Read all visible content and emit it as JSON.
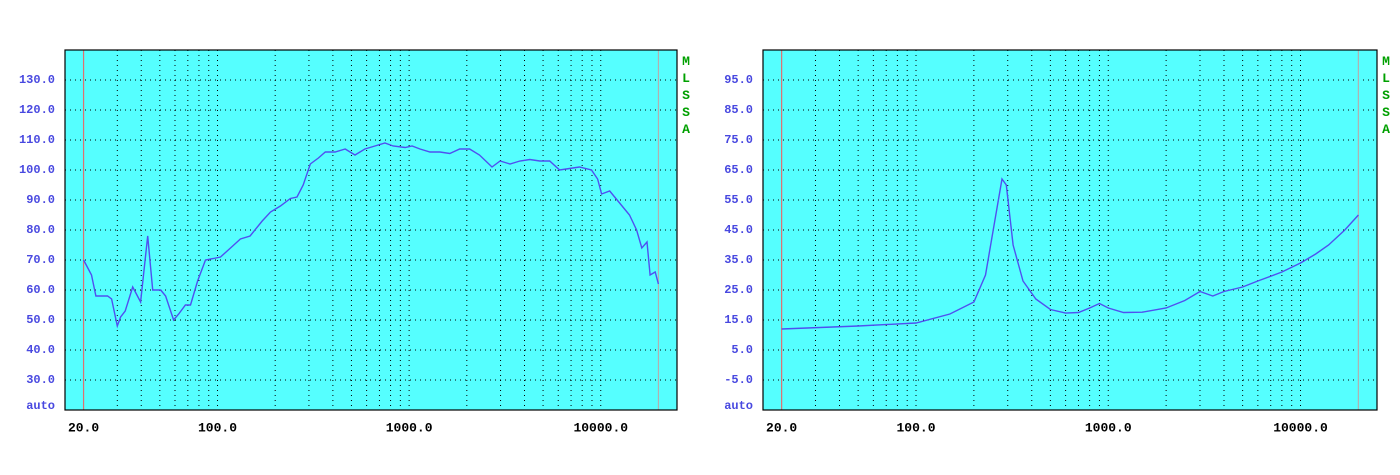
{
  "chart_data": [
    {
      "type": "line",
      "log_x": true,
      "grid": true,
      "side_label": "MLSSA",
      "auto_label": "auto",
      "plot_color": "#55ffff",
      "xlim": [
        16,
        25000
      ],
      "ylim": [
        20,
        140
      ],
      "xticks": [
        {
          "value": 20,
          "label": "20.0"
        },
        {
          "value": 100,
          "label": "100.0"
        },
        {
          "value": 1000,
          "label": "1000.0"
        },
        {
          "value": 10000,
          "label": "10000.0"
        }
      ],
      "xminor": [
        30,
        40,
        50,
        60,
        70,
        80,
        90,
        100,
        200,
        300,
        400,
        500,
        600,
        700,
        800,
        900,
        1000,
        2000,
        3000,
        4000,
        5000,
        6000,
        7000,
        8000,
        9000,
        10000
      ],
      "range_markers": [
        {
          "value": 20,
          "color": "#e07070"
        },
        {
          "value": 20000,
          "color": "#b0b0b0"
        }
      ],
      "yticks": [
        {
          "value": 30,
          "label": "30.0"
        },
        {
          "value": 40,
          "label": "40.0"
        },
        {
          "value": 50,
          "label": "50.0"
        },
        {
          "value": 60,
          "label": "60.0"
        },
        {
          "value": 70,
          "label": "70.0"
        },
        {
          "value": 80,
          "label": "80.0"
        },
        {
          "value": 90,
          "label": "90.0"
        },
        {
          "value": 100,
          "label": "100.0"
        },
        {
          "value": 110,
          "label": "110.0"
        },
        {
          "value": 120,
          "label": "120.0"
        },
        {
          "value": 130,
          "label": "130.0"
        }
      ],
      "x": [
        20,
        22,
        23.2,
        26.7,
        28,
        30,
        31.2,
        33,
        36.1,
        39.7,
        43.2,
        45.9,
        50.5,
        53.6,
        59,
        62.7,
        68,
        72.3,
        78.7,
        86.6,
        95.3,
        103.7,
        116.9,
        131.7,
        148,
        171,
        189,
        213,
        240,
        260,
        280,
        305,
        336,
        365,
        411,
        464,
        522,
        588,
        663,
        747,
        825,
        953,
        1036,
        1140,
        1285,
        1447,
        1630,
        1836,
        2068,
        2330,
        2706,
        2982,
        3360,
        3785,
        4265,
        4805,
        5414,
        6099,
        6872,
        7742,
        8946,
        9625,
        10100,
        11130,
        12540,
        14130,
        15380,
        16380,
        17440,
        18100,
        19250,
        20000
      ],
      "series": [
        {
          "color": "#5050f0",
          "values": [
            70,
            65,
            58,
            58,
            57,
            48,
            51,
            53,
            61,
            56,
            78,
            60,
            60,
            58,
            50,
            52,
            55,
            55,
            63,
            70,
            70.5,
            71,
            74,
            77,
            78,
            83,
            86,
            88,
            90.5,
            91,
            95,
            102,
            104,
            106,
            106,
            107,
            105,
            107,
            108,
            109,
            108,
            107.5,
            108,
            107,
            106,
            106,
            105.5,
            107,
            107,
            105,
            101,
            103,
            102,
            103,
            103.5,
            103,
            103,
            100,
            100.5,
            101,
            100,
            97,
            92,
            93,
            89,
            85,
            80,
            74,
            76,
            65,
            66,
            62
          ]
        }
      ]
    },
    {
      "type": "line",
      "log_x": true,
      "grid": true,
      "side_label": "MLSSA",
      "auto_label": "auto",
      "plot_color": "#55ffff",
      "xlim": [
        16,
        25000
      ],
      "ylim": [
        -15,
        105
      ],
      "xticks": [
        {
          "value": 20,
          "label": "20.0"
        },
        {
          "value": 100,
          "label": "100.0"
        },
        {
          "value": 1000,
          "label": "1000.0"
        },
        {
          "value": 10000,
          "label": "10000.0"
        }
      ],
      "xminor": [
        30,
        40,
        50,
        60,
        70,
        80,
        90,
        100,
        200,
        300,
        400,
        500,
        600,
        700,
        800,
        900,
        1000,
        2000,
        3000,
        4000,
        5000,
        6000,
        7000,
        8000,
        9000,
        10000
      ],
      "range_markers": [
        {
          "value": 20,
          "color": "#e07070"
        },
        {
          "value": 20000,
          "color": "#b0b0b0"
        }
      ],
      "yticks": [
        {
          "value": -5,
          "label": "-5.0"
        },
        {
          "value": 5,
          "label": "5.0"
        },
        {
          "value": 15,
          "label": "15.0"
        },
        {
          "value": 25,
          "label": "25.0"
        },
        {
          "value": 35,
          "label": "35.0"
        },
        {
          "value": 45,
          "label": "45.0"
        },
        {
          "value": 55,
          "label": "55.0"
        },
        {
          "value": 65,
          "label": "65.0"
        },
        {
          "value": 75,
          "label": "75.0"
        },
        {
          "value": 85,
          "label": "85.0"
        },
        {
          "value": 95,
          "label": "95.0"
        }
      ],
      "x": [
        20,
        50,
        100,
        150,
        200,
        230,
        260,
        280,
        295,
        320,
        360,
        420,
        500,
        600,
        700,
        800,
        900,
        1000,
        1200,
        1500,
        2000,
        2500,
        3000,
        3500,
        4000,
        5000,
        6000,
        8000,
        10000,
        12000,
        14000,
        17000,
        20000
      ],
      "series": [
        {
          "color": "#5050f0",
          "values": [
            12,
            13,
            14,
            17,
            21,
            30,
            50,
            62,
            60,
            40,
            28,
            22,
            18.5,
            17.3,
            17.5,
            19,
            20.5,
            19,
            17.5,
            17.6,
            19,
            21.5,
            24.5,
            23,
            24.5,
            26,
            28,
            31,
            34,
            37,
            40,
            45,
            50
          ]
        }
      ]
    }
  ]
}
